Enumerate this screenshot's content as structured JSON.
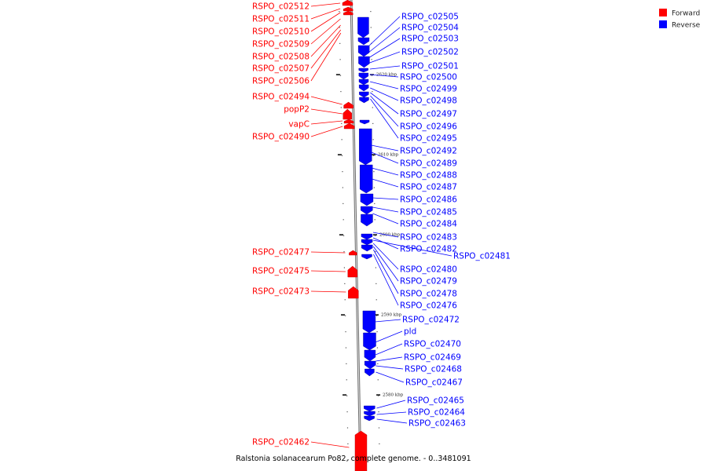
{
  "caption": "Ralstonia solanacearum Po82, complete genome. - 0..3481091",
  "legend": [
    {
      "label": "Forward",
      "color": "#ff0000"
    },
    {
      "label": "Reverse",
      "color": "#0000ff"
    }
  ],
  "colors": {
    "forward": "#ff0000",
    "reverse": "#0000ff",
    "backbone": "#9a9a9a"
  },
  "ticks": [
    "2620 kbp",
    "2610 kbp",
    "2600 kbp",
    "2590 kbp",
    "2580 kbp"
  ],
  "forward_genes": [
    "RSPO_c02512",
    "RSPO_c02511",
    "RSPO_c02510",
    "RSPO_c02509",
    "RSPO_c02508",
    "RSPO_c02507",
    "RSPO_c02506",
    "RSPO_c02494",
    "popP2",
    "vapC",
    "RSPO_c02490",
    "RSPO_c02477",
    "RSPO_c02475",
    "RSPO_c02473",
    "RSPO_c02462"
  ],
  "reverse_genes": [
    "RSPO_c02505",
    "RSPO_c02504",
    "RSPO_c02503",
    "RSPO_c02502",
    "RSPO_c02501",
    "RSPO_c02500",
    "RSPO_c02499",
    "RSPO_c02498",
    "RSPO_c02497",
    "RSPO_c02496",
    "RSPO_c02495",
    "RSPO_c02492",
    "RSPO_c02489",
    "RSPO_c02488",
    "RSPO_c02487",
    "RSPO_c02486",
    "RSPO_c02485",
    "RSPO_c02484",
    "RSPO_c02483",
    "RSPO_c02482",
    "RSPO_c02481",
    "RSPO_c02480",
    "RSPO_c02479",
    "RSPO_c02478",
    "RSPO_c02476",
    "RSPO_c02472",
    "pld",
    "RSPO_c02470",
    "RSPO_c02469",
    "RSPO_c02468",
    "RSPO_c02467",
    "RSPO_c02465",
    "RSPO_c02464",
    "RSPO_c02463"
  ]
}
